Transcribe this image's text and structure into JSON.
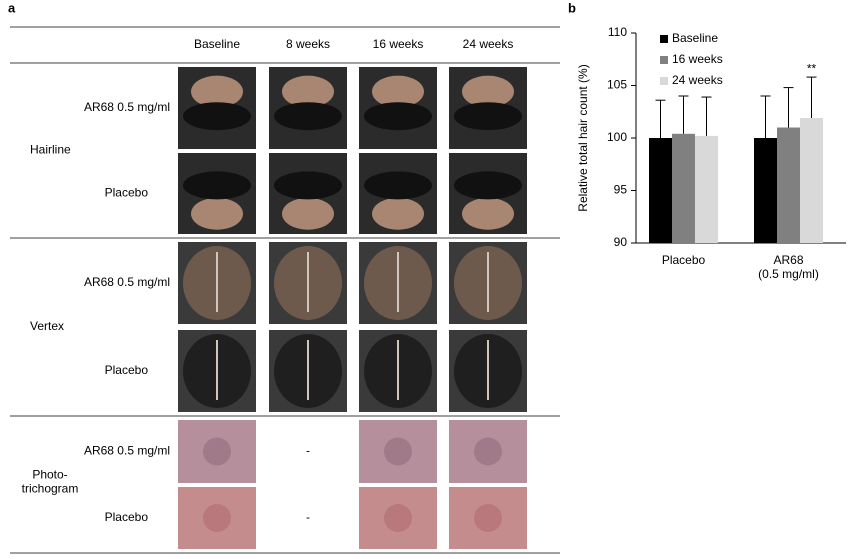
{
  "panel_a": {
    "label": "a",
    "columns": [
      "Baseline",
      "8 weeks",
      "16 weeks",
      "24 weeks"
    ],
    "groups": [
      {
        "label": "Hairline",
        "rows": [
          {
            "label": "AR68 0.5 mg/ml"
          },
          {
            "label": "Placebo"
          }
        ]
      },
      {
        "label": "Vertex",
        "rows": [
          {
            "label": "AR68 0.5 mg/ml"
          },
          {
            "label": "Placebo"
          }
        ]
      },
      {
        "label": "Photo-\ntrichogram",
        "rows": [
          {
            "label": "AR68 0.5 mg/ml",
            "missing": "-"
          },
          {
            "label": "Placebo",
            "missing": "-"
          }
        ]
      }
    ]
  },
  "chart_data": {
    "type": "bar",
    "panel_label": "b",
    "y_label": "Relative total hair count (%)",
    "categories": [
      "Placebo",
      "AR68\n(0.5 mg/ml)"
    ],
    "series": [
      {
        "name": "Baseline",
        "color": "#000000",
        "values": [
          100,
          100
        ],
        "errors": [
          3.6,
          4.0
        ]
      },
      {
        "name": "16 weeks",
        "color": "#808080",
        "values": [
          100.4,
          101.0
        ],
        "errors": [
          3.6,
          3.8
        ]
      },
      {
        "name": "24 weeks",
        "color": "#d9d9d9",
        "values": [
          100.2,
          101.9
        ],
        "errors": [
          3.7,
          3.9
        ]
      }
    ],
    "annotations": [
      {
        "text": "**",
        "series": 2,
        "category": 1
      }
    ],
    "ylim": [
      90,
      110
    ],
    "yticks": [
      90,
      95,
      100,
      105,
      110
    ],
    "legend": "upper left"
  }
}
